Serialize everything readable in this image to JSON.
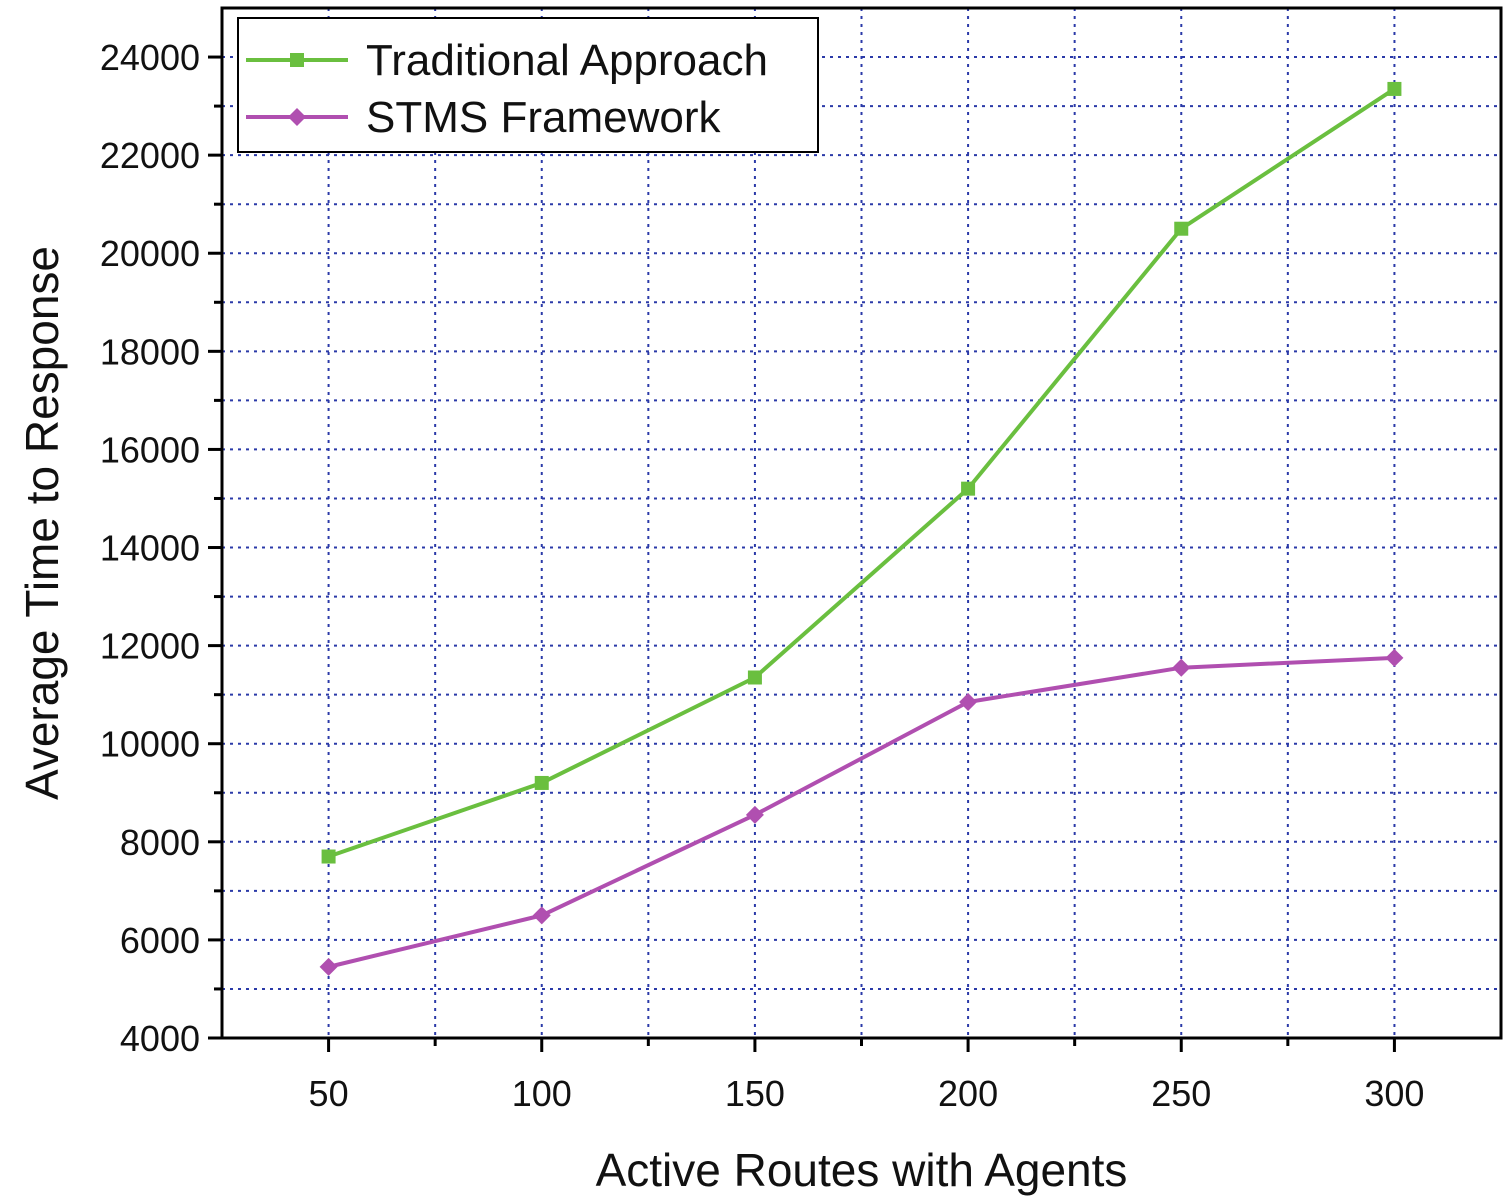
{
  "chart_data": {
    "type": "line",
    "xlabel": "Active Routes with Agents",
    "ylabel": "Average Time to Response",
    "x": [
      50,
      100,
      150,
      200,
      250,
      300
    ],
    "xlim": [
      25,
      325
    ],
    "ylim": [
      4000,
      25000
    ],
    "x_ticks": [
      50,
      100,
      150,
      200,
      250,
      300
    ],
    "x_tick_labels": [
      "50",
      "100",
      "150",
      "200",
      "250",
      "300"
    ],
    "y_ticks": [
      4000,
      6000,
      8000,
      10000,
      12000,
      14000,
      16000,
      18000,
      20000,
      22000,
      24000
    ],
    "y_tick_labels": [
      "4000",
      "6000",
      "8000",
      "10000",
      "12000",
      "14000",
      "16000",
      "18000",
      "20000",
      "22000",
      "24000"
    ],
    "grid": true,
    "legend_position": "top-left",
    "series": [
      {
        "name": "Traditional Approach",
        "color": "#6abf3f",
        "marker": "square",
        "values": [
          7700,
          9200,
          11350,
          15200,
          20500,
          23350
        ]
      },
      {
        "name": "STMS Framework",
        "color": "#b04fb0",
        "marker": "diamond",
        "values": [
          5450,
          6500,
          8550,
          10850,
          11550,
          11750
        ]
      }
    ]
  }
}
